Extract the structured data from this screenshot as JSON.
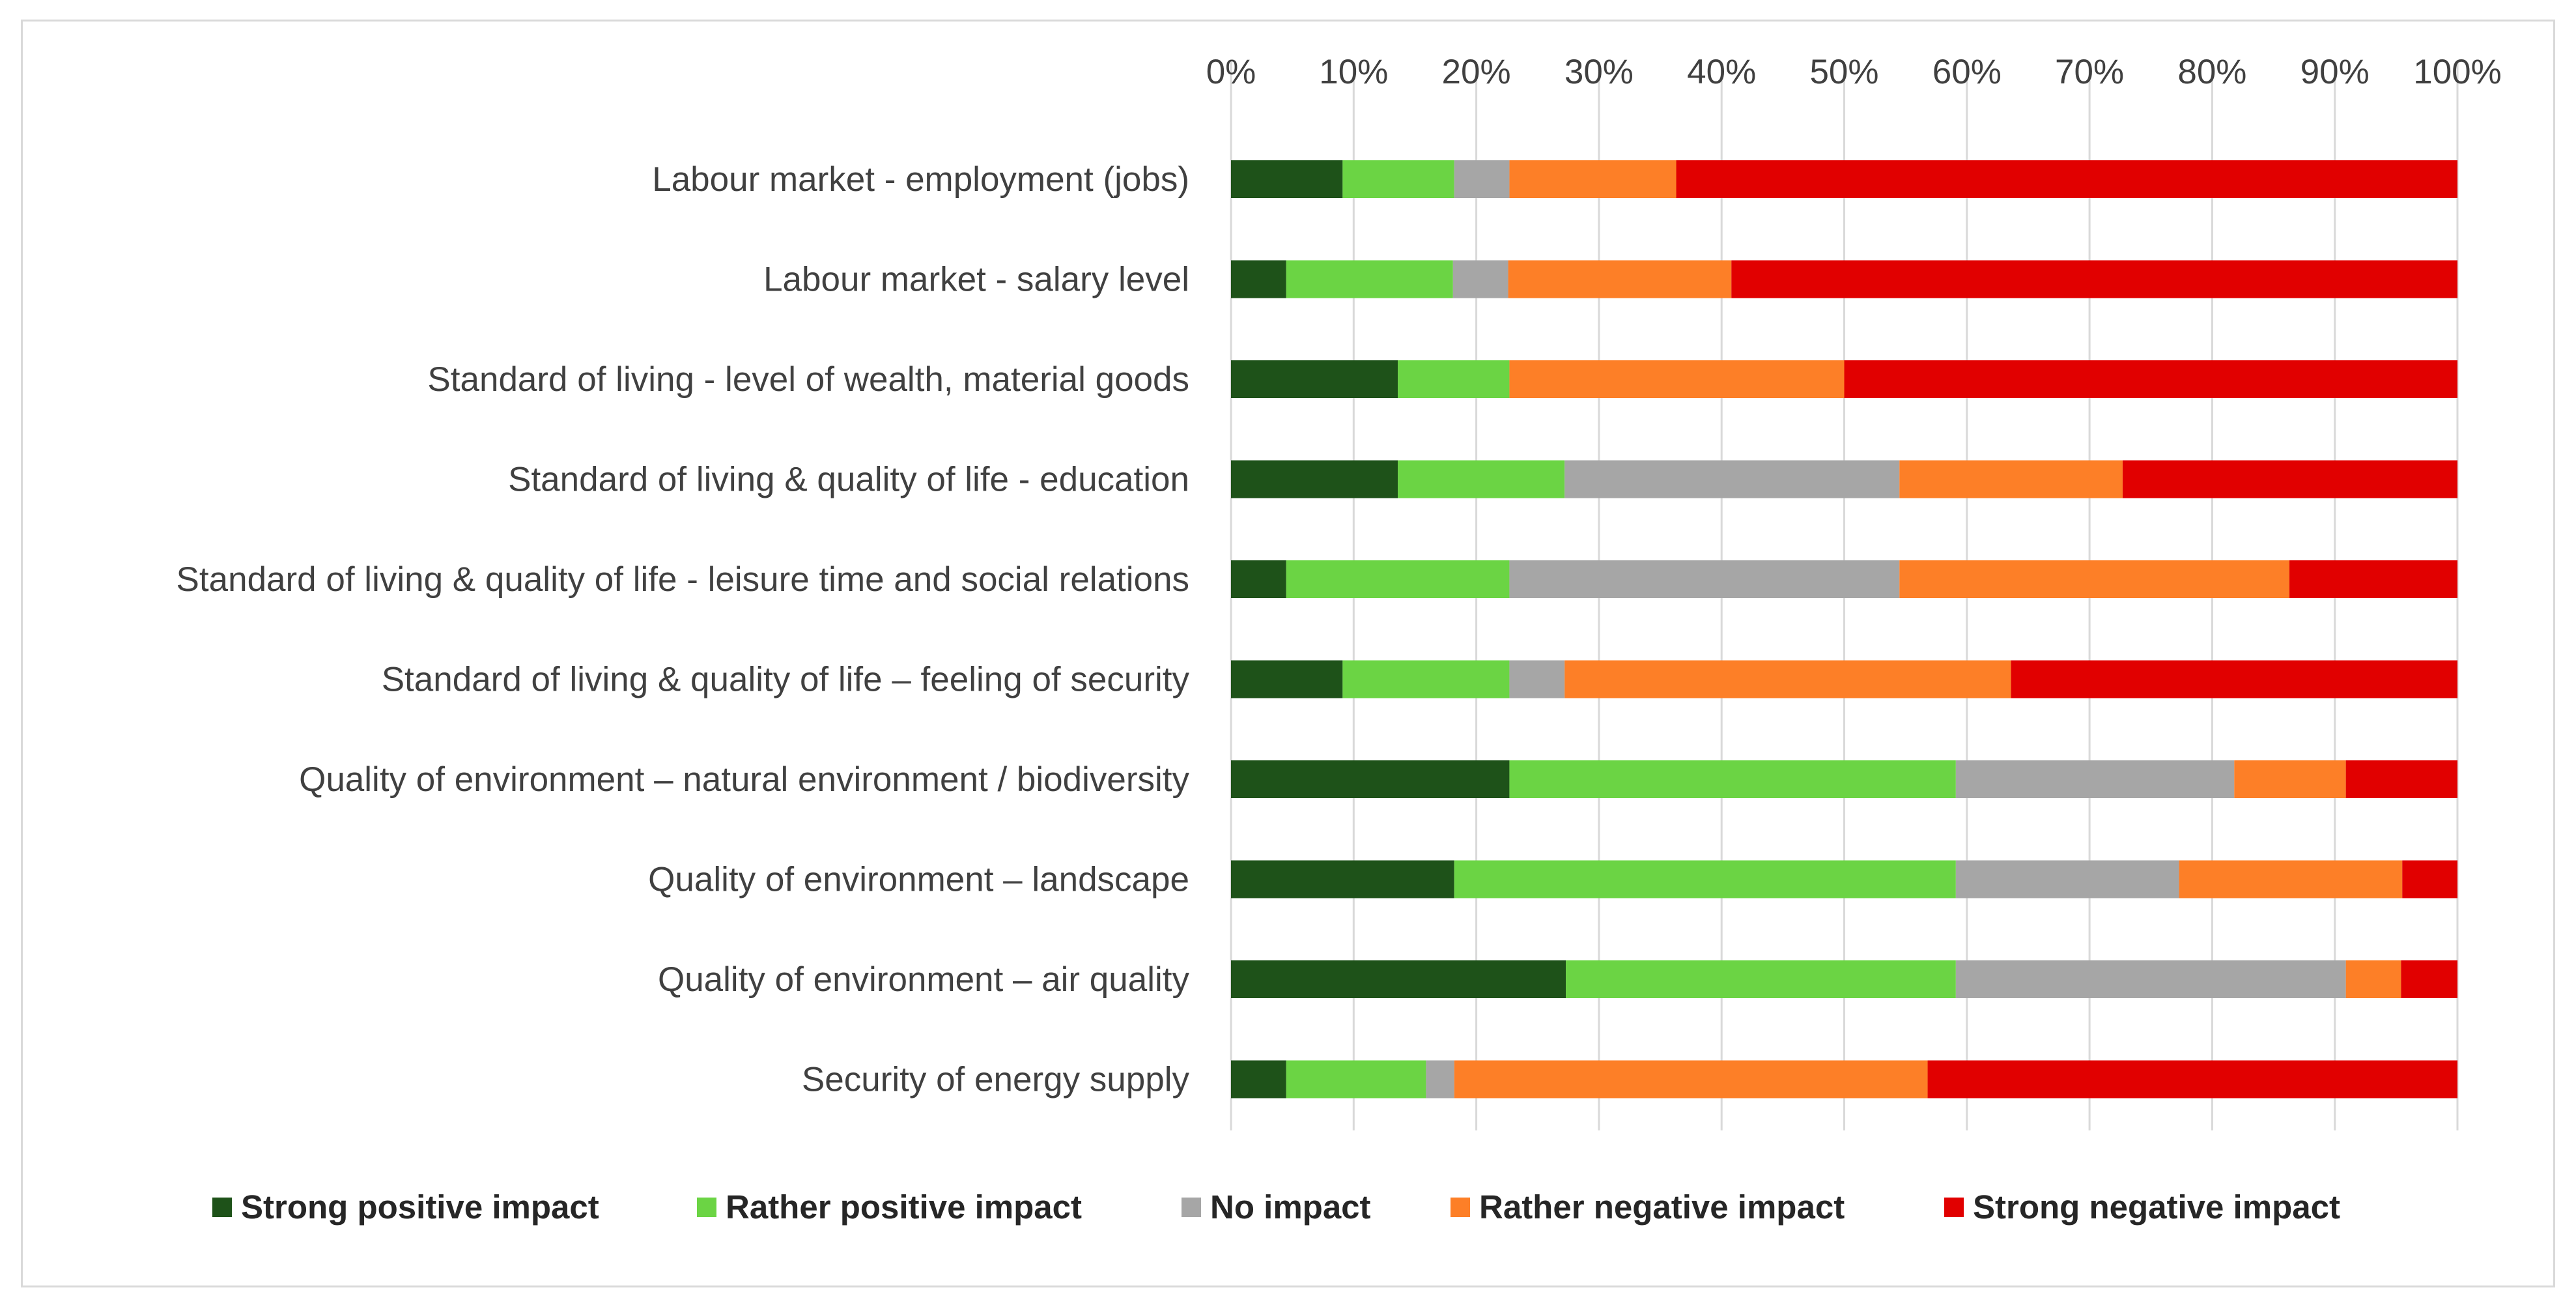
{
  "chart_data": {
    "type": "bar",
    "orientation": "horizontal",
    "stacked": "percent",
    "title": "",
    "xlabel": "",
    "ylabel": "",
    "xlim": [
      0,
      100
    ],
    "x_ticks": [
      "0%",
      "10%",
      "20%",
      "30%",
      "40%",
      "50%",
      "60%",
      "70%",
      "80%",
      "90%",
      "100%"
    ],
    "x_axis_position": "top",
    "grid": true,
    "legend_position": "bottom",
    "categories": [
      "Labour market - employment (jobs)",
      "Labour market - salary level",
      "Standard of living - level of wealth, material goods",
      "Standard of living & quality of life - education",
      "Standard of living & quality of life - leisure time and social relations",
      "Standard of living & quality of life – feeling of security",
      "Quality of environment – natural environment / biodiversity",
      "Quality of environment – landscape",
      "Quality of environment – air quality",
      "Security of energy supply"
    ],
    "series": [
      {
        "name": "Strong positive impact",
        "color": "#1e5219",
        "values": [
          9.1,
          4.5,
          13.6,
          13.6,
          4.5,
          9.1,
          22.7,
          18.2,
          27.3,
          4.5
        ]
      },
      {
        "name": "Rather positive impact",
        "color": "#6bd444",
        "values": [
          9.1,
          13.6,
          9.1,
          13.6,
          18.2,
          13.6,
          36.4,
          40.9,
          31.8,
          11.4
        ]
      },
      {
        "name": "No impact",
        "color": "#a6a6a6",
        "values": [
          4.5,
          4.5,
          0,
          27.3,
          31.8,
          4.5,
          22.7,
          18.2,
          31.8,
          2.3
        ]
      },
      {
        "name": "Rather negative impact",
        "color": "#fd7f27",
        "values": [
          13.6,
          18.2,
          27.3,
          18.2,
          31.8,
          36.4,
          9.1,
          18.2,
          4.5,
          38.6
        ]
      },
      {
        "name": "Strong negative impact",
        "color": "#e10000",
        "values": [
          63.7,
          59.2,
          50.0,
          27.3,
          13.7,
          36.4,
          9.1,
          4.5,
          4.6,
          43.2
        ]
      }
    ]
  }
}
